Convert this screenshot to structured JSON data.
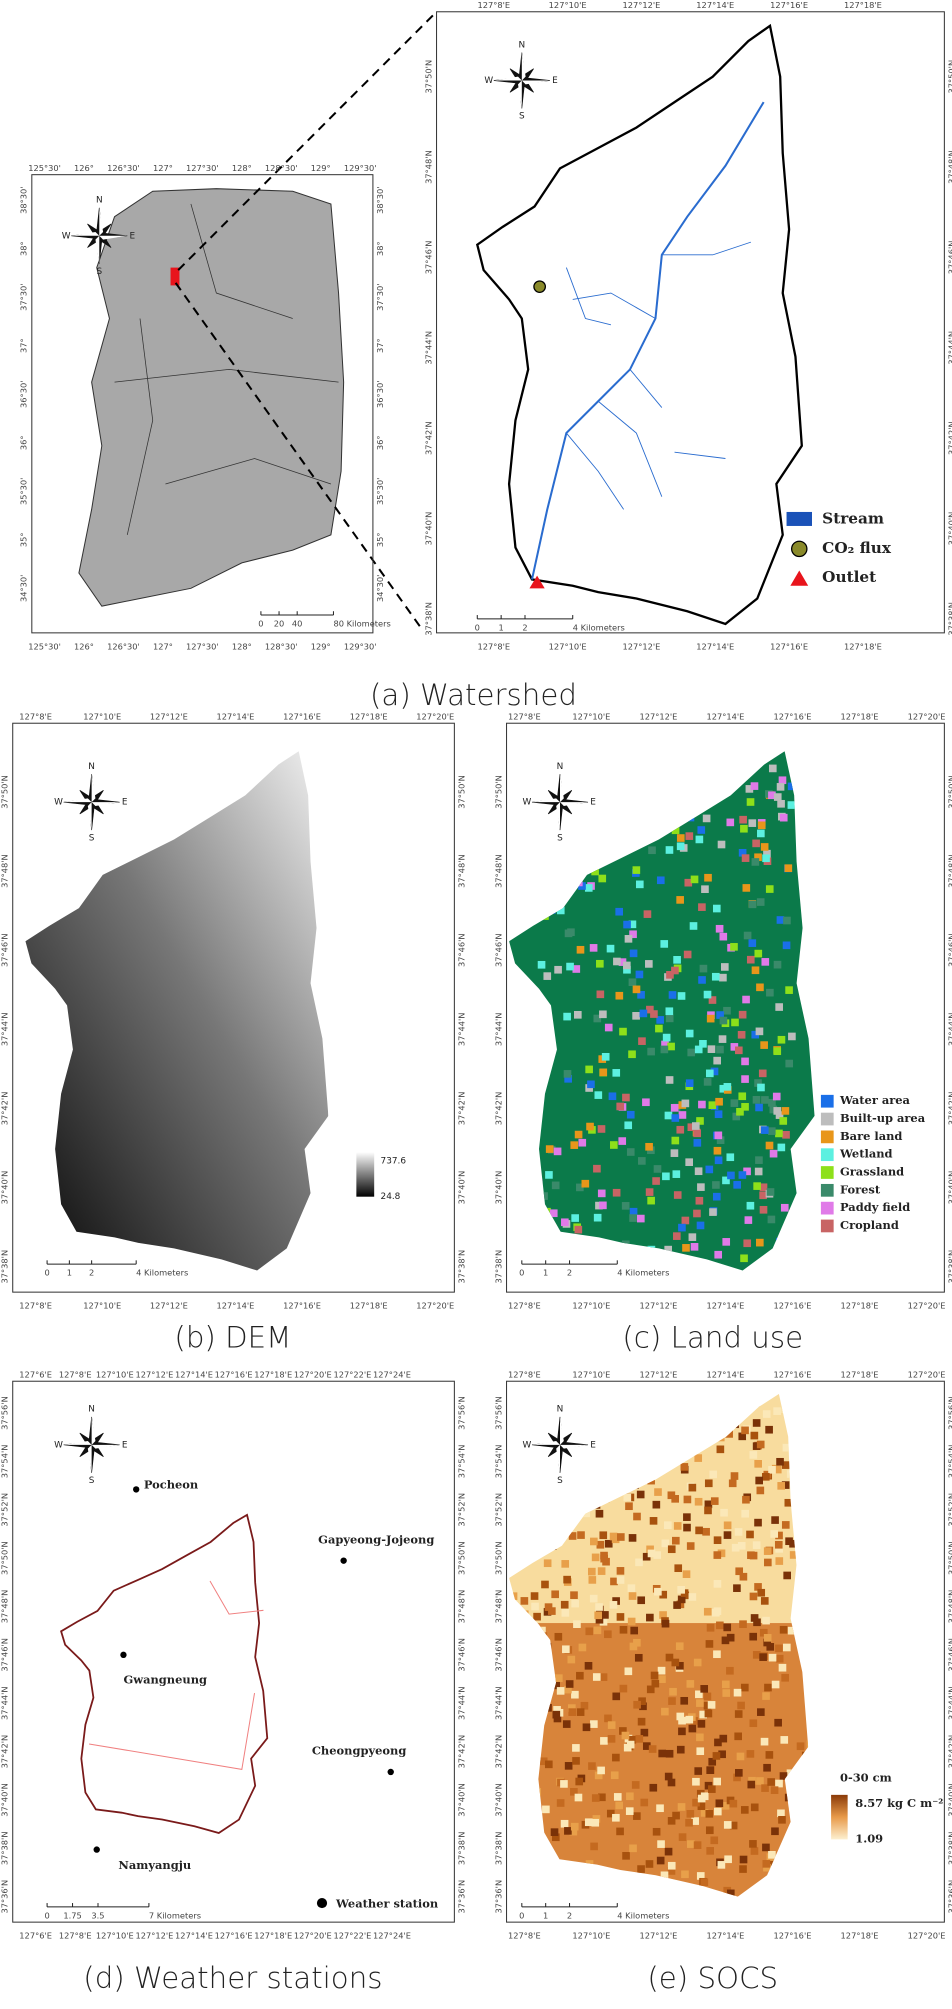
{
  "compass": {
    "n": "N",
    "e": "E",
    "s": "S",
    "w": "W"
  },
  "panels": {
    "watershed_inset": {
      "top_ticks": [
        "125°30'",
        "126°",
        "126°30'",
        "127°",
        "127°30'",
        "128°",
        "128°30'",
        "129°",
        "129°30'"
      ],
      "left_ticks": [
        "38°30'",
        "38°",
        "37°30'",
        "37°",
        "36°30'",
        "36°",
        "35°30'",
        "35°",
        "34°30'"
      ],
      "scale_bar": [
        "0",
        "20",
        "40",
        "80 Kilometers"
      ]
    },
    "watershed": {
      "caption": "(a) Watershed",
      "top_ticks": [
        "127°8'E",
        "127°10'E",
        "127°12'E",
        "127°14'E",
        "127°16'E",
        "127°18'E"
      ],
      "left_ticks": [
        "37°50'N",
        "37°48'N",
        "37°46'N",
        "37°44'N",
        "37°42'N",
        "37°40'N",
        "37°38'N"
      ],
      "scale_bar": [
        "0",
        "1",
        "2",
        "4 Kilometers"
      ],
      "legend": [
        "Stream",
        "CO₂ flux",
        "Outlet"
      ]
    },
    "dem": {
      "caption": "(b) DEM",
      "top_ticks": [
        "127°8'E",
        "127°10'E",
        "127°12'E",
        "127°14'E",
        "127°16'E",
        "127°18'E",
        "127°20'E"
      ],
      "left_ticks": [
        "37°50'N",
        "37°48'N",
        "37°46'N",
        "37°44'N",
        "37°42'N",
        "37°40'N",
        "37°38'N"
      ],
      "scale_bar": [
        "0",
        "1",
        "2",
        "4 Kilometers"
      ],
      "colorbar": [
        "737.6",
        "24.8"
      ]
    },
    "land_use": {
      "caption": "(c) Land use",
      "top_ticks": [
        "127°8'E",
        "127°10'E",
        "127°12'E",
        "127°14'E",
        "127°16'E",
        "127°18'E",
        "127°20'E"
      ],
      "left_ticks": [
        "37°50'N",
        "37°48'N",
        "37°46'N",
        "37°44'N",
        "37°42'N",
        "37°40'N",
        "37°38'N"
      ],
      "scale_bar": [
        "0",
        "1",
        "2",
        "4 Kilometers"
      ],
      "legend": [
        {
          "name": "Water area",
          "color": "#1a6fe8"
        },
        {
          "name": "Built-up area",
          "color": "#bdbdbd"
        },
        {
          "name": "Bare land",
          "color": "#e8961a"
        },
        {
          "name": "Wetland",
          "color": "#5cf0e0"
        },
        {
          "name": "Grassland",
          "color": "#8ee01a"
        },
        {
          "name": "Forest",
          "color": "#3a8a6a"
        },
        {
          "name": "Paddy field",
          "color": "#e07ae8"
        },
        {
          "name": "Cropland",
          "color": "#c86464"
        }
      ]
    },
    "weather_stations": {
      "caption": "(d) Weather stations",
      "top_ticks": [
        "127°6'E",
        "127°8'E",
        "127°10'E",
        "127°12'E",
        "127°14'E",
        "127°16'E",
        "127°18'E",
        "127°20'E",
        "127°22'E",
        "127°24'E"
      ],
      "left_ticks": [
        "37°56'N",
        "37°54'N",
        "37°52'N",
        "37°50'N",
        "37°48'N",
        "37°46'N",
        "37°44'N",
        "37°42'N",
        "37°40'N",
        "37°38'N",
        "37°36'N"
      ],
      "scale_bar": [
        "0",
        "1.75",
        "3.5",
        "7 Kilometers"
      ],
      "stations": [
        "Pocheon",
        "Gapyeong-Jojeong",
        "Gwangneung",
        "Cheongpyeong",
        "Namyangju"
      ],
      "legend": "Weather station"
    },
    "socs": {
      "caption": "(e) SOCS",
      "top_ticks": [
        "127°8'E",
        "127°10'E",
        "127°12'E",
        "127°14'E",
        "127°16'E",
        "127°18'E",
        "127°20'E"
      ],
      "left_ticks": [
        "37°56'N",
        "37°54'N",
        "37°52'N",
        "37°50'N",
        "37°48'N",
        "37°46'N",
        "37°44'N",
        "37°42'N",
        "37°40'N",
        "37°38'N",
        "37°36'N"
      ],
      "scale_bar": [
        "0",
        "1",
        "2",
        "4 Kilometers"
      ],
      "colorbar": [
        "0-30 cm",
        "8.57 kg C m⁻²",
        "1.09"
      ]
    }
  }
}
